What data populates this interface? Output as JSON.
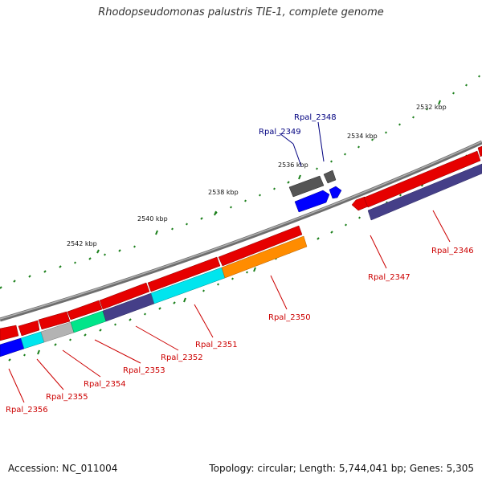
{
  "title": "Rhodopseudomonas palustris TIE-1, complete genome",
  "accession": "Accession: NC_011004",
  "summary": "Topology: circular; Length: 5,744,041 bp; Genes: 5,305",
  "colors": {
    "backbone": "#808080",
    "tick": "#1a7f1a",
    "label_plus": "#000080",
    "label_minus": "#cc0000"
  },
  "kbp_labels": [
    "2532 kbp",
    "2534 kbp",
    "2536 kbp",
    "2538 kbp",
    "2540 kbp",
    "2542 kbp"
  ],
  "genes": [
    {
      "name": "Rpal_2346",
      "strand": "-",
      "color": "#453f88"
    },
    {
      "name": "Rpal_2347",
      "strand": "-",
      "color": "#e60000"
    },
    {
      "name": "Rpal_2348",
      "strand": "+",
      "color": "#0000ff"
    },
    {
      "name": "Rpal_2349",
      "strand": "+",
      "color": "#555555"
    },
    {
      "name": "Rpal_2350",
      "strand": "-",
      "color": "#ff8c00"
    },
    {
      "name": "Rpal_2351",
      "strand": "-",
      "color": "#00e5ee"
    },
    {
      "name": "Rpal_2352",
      "strand": "-",
      "color": "#453f88"
    },
    {
      "name": "Rpal_2353",
      "strand": "-",
      "color": "#00e58a"
    },
    {
      "name": "Rpal_2354",
      "strand": "-",
      "color": "#b3b3b3"
    },
    {
      "name": "Rpal_2355",
      "strand": "-",
      "color": "#00e5ee"
    },
    {
      "name": "Rpal_2356",
      "strand": "-",
      "color": "#0000ff"
    }
  ]
}
